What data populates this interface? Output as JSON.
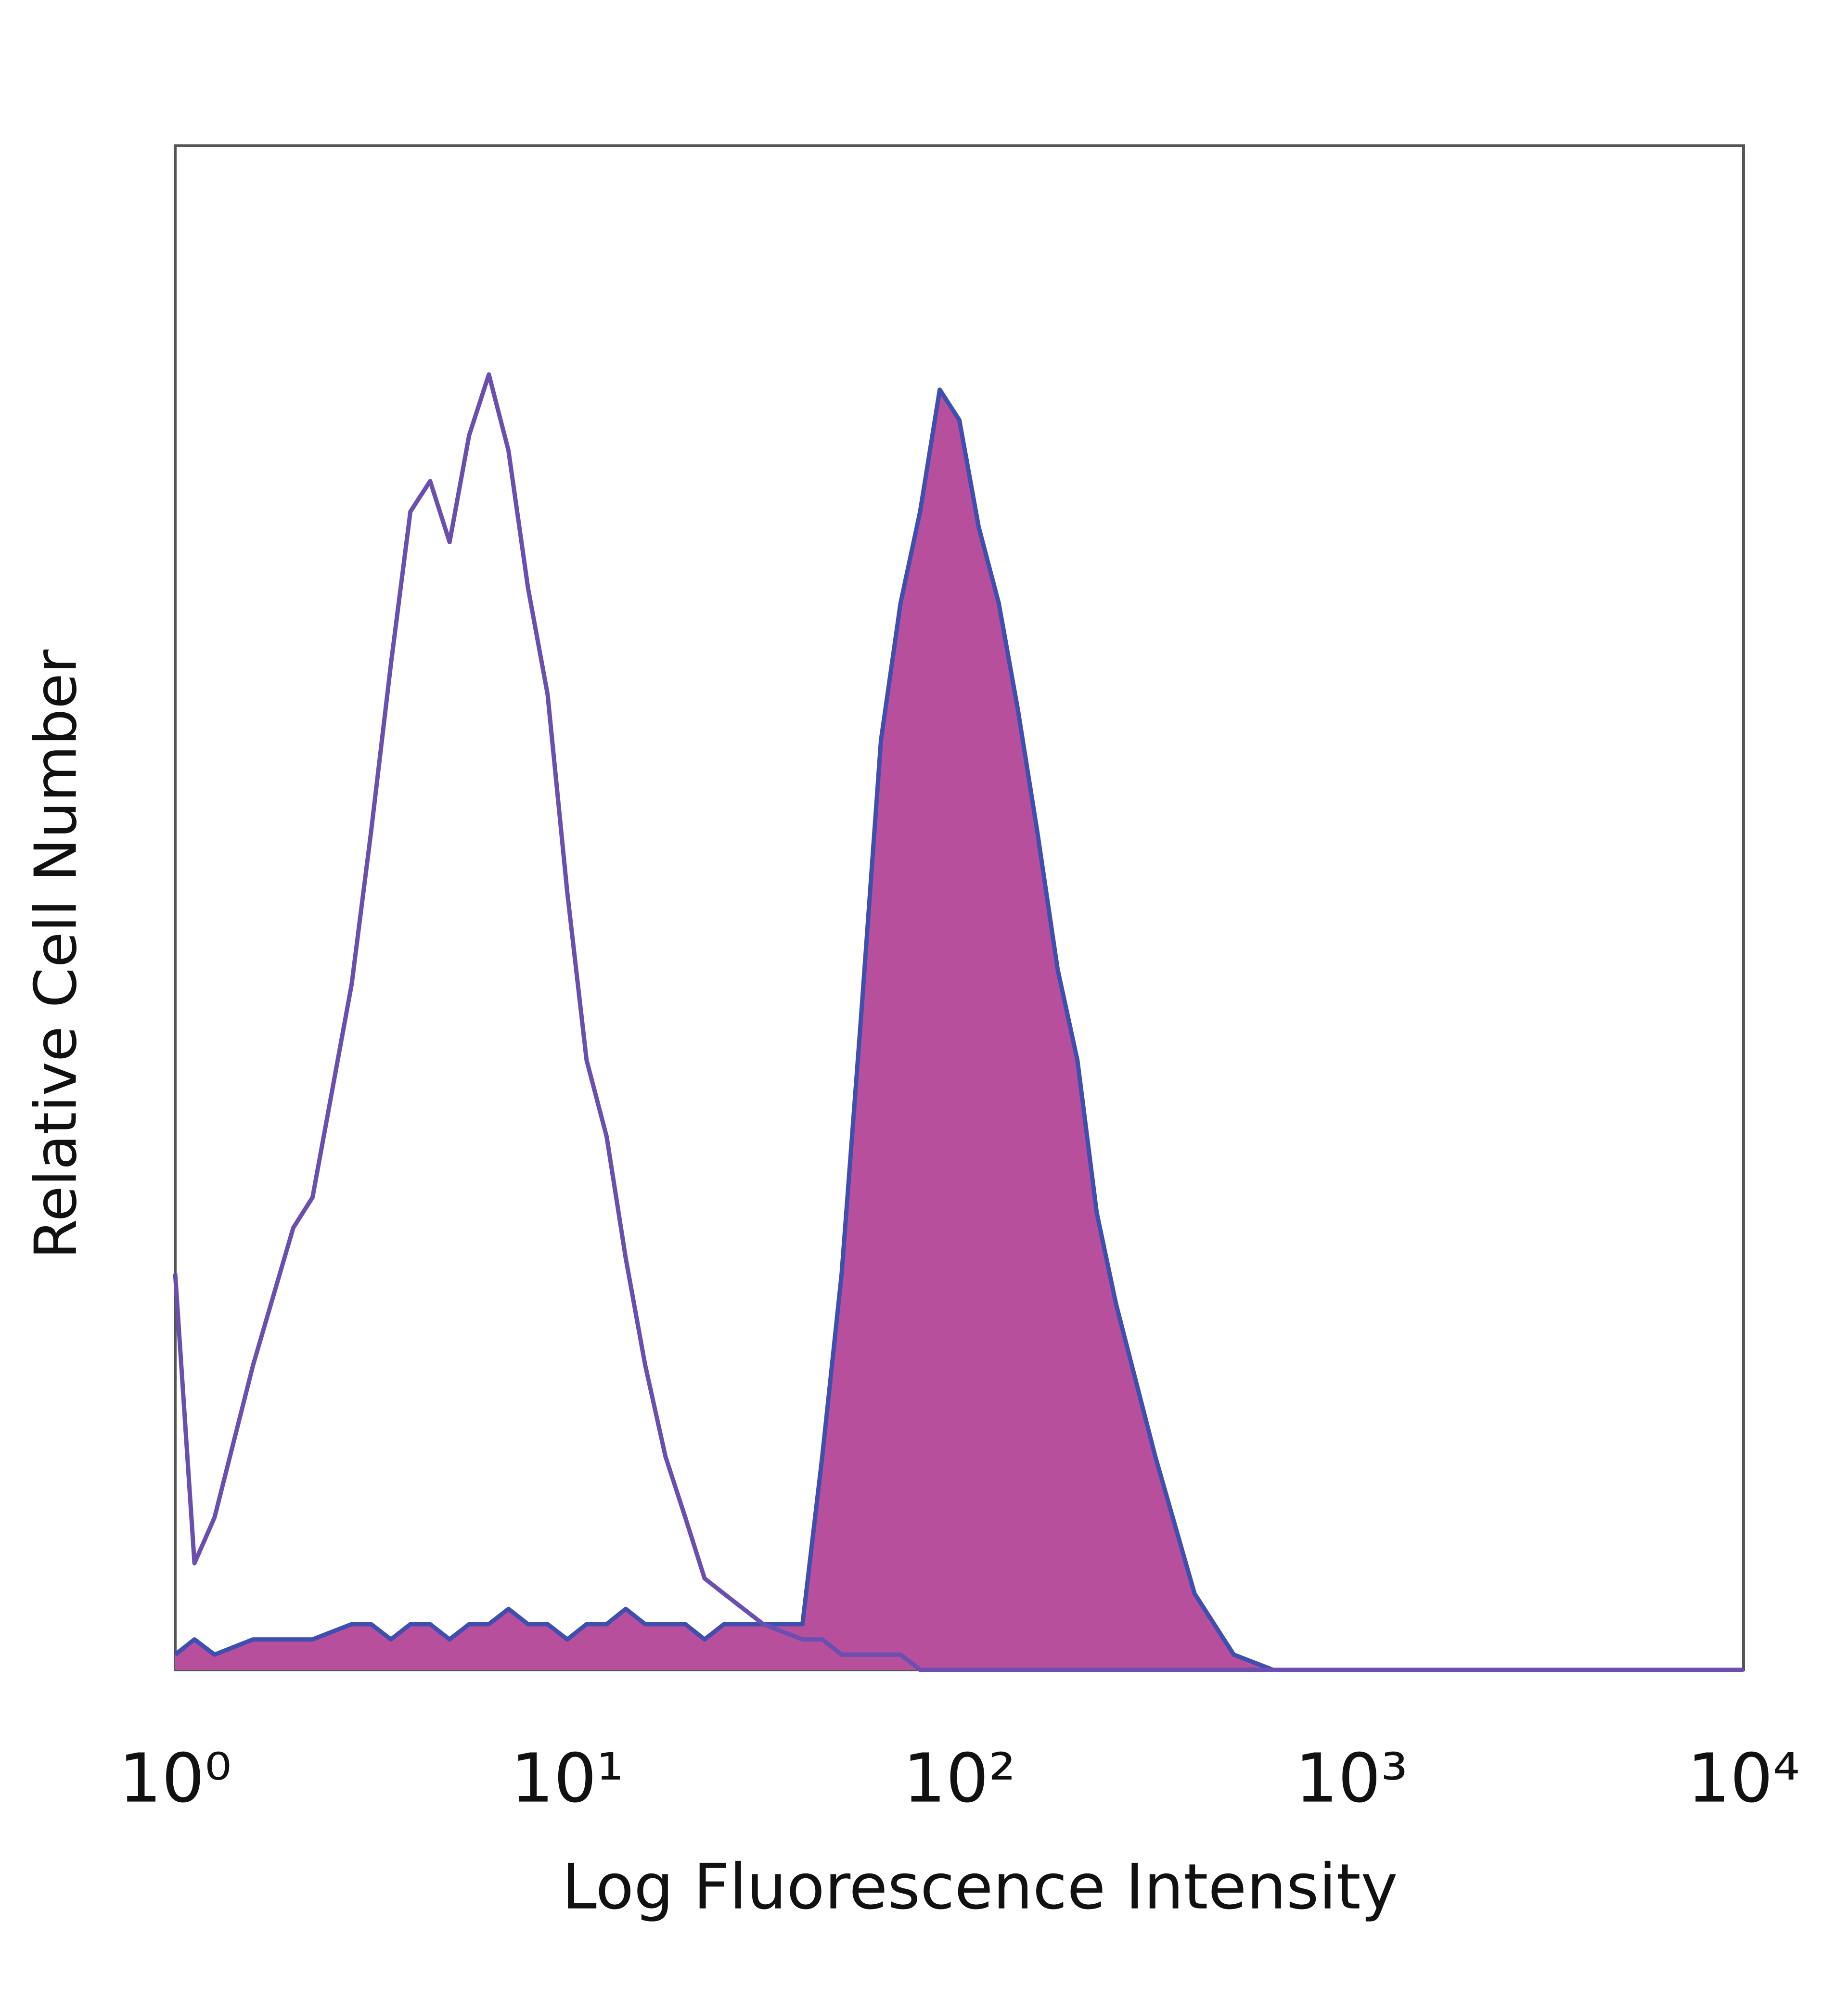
{
  "chart_data": {
    "type": "histogram-overlay",
    "xlabel": "Log Fluorescence Intensity",
    "ylabel": "Relative Cell Number",
    "xscale": "log",
    "xlim": [
      1,
      10000
    ],
    "xticks": [
      {
        "value": 1,
        "label": "10⁰"
      },
      {
        "value": 10,
        "label": "10¹"
      },
      {
        "value": 100,
        "label": "10²"
      },
      {
        "value": 1000,
        "label": "10³"
      },
      {
        "value": 10000,
        "label": "10⁴"
      }
    ],
    "ylim": [
      0,
      100
    ],
    "x": [
      1,
      1.12,
      1.26,
      1.58,
      2,
      2.24,
      2.82,
      3.16,
      3.55,
      3.98,
      4.47,
      5.01,
      5.62,
      6.31,
      7.08,
      7.94,
      8.91,
      10,
      11.2,
      12.6,
      14.1,
      15.8,
      17.8,
      20,
      22.4,
      25.1,
      31.6,
      39.8,
      44.7,
      50.1,
      56.2,
      63.1,
      70.8,
      79.4,
      89.1,
      100,
      112,
      126,
      141,
      158,
      178,
      200,
      224,
      251,
      316,
      398,
      501,
      631,
      1000,
      10000
    ],
    "series": [
      {
        "color": "#3f4fb0",
        "fill": "#b84f9c",
        "filled": true,
        "values": [
          1,
          2,
          1,
          2,
          2,
          2,
          3,
          3,
          2,
          3,
          3,
          2,
          3,
          3,
          4,
          3,
          3,
          2,
          3,
          3,
          4,
          3,
          3,
          3,
          2,
          3,
          3,
          3,
          14,
          26,
          43,
          61,
          70,
          76,
          84,
          82,
          75,
          70,
          63,
          55,
          46,
          40,
          30,
          24,
          14,
          5,
          1,
          0,
          0,
          0
        ]
      },
      {
        "color": "#6a4fb0",
        "filled": false,
        "values": [
          26,
          7,
          10,
          20,
          29,
          31,
          45,
          55,
          66,
          76,
          78,
          74,
          81,
          85,
          80,
          71,
          64,
          51,
          40,
          35,
          27,
          20,
          14,
          10,
          6,
          5,
          3,
          2,
          2,
          1,
          1,
          1,
          1,
          0,
          0,
          0,
          0,
          0,
          0,
          0,
          0,
          0,
          0,
          0,
          0,
          0,
          0,
          0,
          0,
          0
        ]
      }
    ]
  }
}
